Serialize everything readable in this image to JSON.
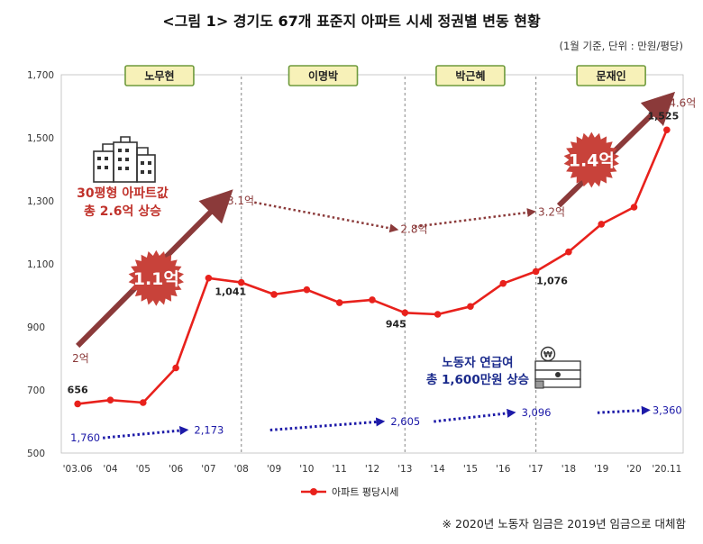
{
  "page": {
    "title": "<그림 1> 경기도 67개 표준지 아파트 시세 정권별 변동 현황",
    "unit_note": "(1월 기준, 단위 : 만원/평당)",
    "footnote": "※ 2020년 노동자 임금은 2019년 임금으로 대체함"
  },
  "colors": {
    "price_line": "#e8211c",
    "wage_line": "#1d1aa8",
    "arrow": "#8b3a3a",
    "badge": "#c8423a",
    "admin_box_fill": "#f7f1b8",
    "admin_box_border": "#6e9a3c",
    "callout_red": "#c0322b",
    "callout_blue": "#1a2a8c",
    "axis_text": "#333333",
    "divider": "#999999"
  },
  "chart_data": {
    "type": "line",
    "title": "<그림 1> 경기도 67개 표준지 아파트 시세 정권별 변동 현황",
    "ylim": [
      500,
      1700
    ],
    "yticks": [
      500,
      700,
      900,
      1100,
      1300,
      1500,
      1700
    ],
    "ytick_labels": [
      "500",
      "700",
      "900",
      "1,100",
      "1,300",
      "1,500",
      "1,700"
    ],
    "categories": [
      "'03.06",
      "'04",
      "'05",
      "'06",
      "'07",
      "'08",
      "'09",
      "'10",
      "'11",
      "'12",
      "'13",
      "'14",
      "'15",
      "'16",
      "'17",
      "'18",
      "'19",
      "'20",
      "'20.11"
    ],
    "series": [
      {
        "name": "아파트 평당시세",
        "values": [
          656,
          668,
          660,
          770,
          1055,
          1041,
          1003,
          1018,
          977,
          986,
          945,
          940,
          965,
          1038,
          1076,
          1138,
          1226,
          1280,
          1525
        ],
        "labels": [
          {
            "index": 0,
            "text": "656"
          },
          {
            "index": 5,
            "text": "1,041"
          },
          {
            "index": 10,
            "text": "945"
          },
          {
            "index": 14,
            "text": "1,076"
          },
          {
            "index": 18,
            "text": "1,525"
          }
        ]
      }
    ],
    "wage_series": {
      "name": "노동자 연급여",
      "segments": [
        {
          "from_index": 0,
          "from_label": "1,760",
          "to_index": 4,
          "to_label": "2,173"
        },
        {
          "from_index": 5,
          "from_label": "2,173",
          "to_index": 10,
          "to_label": "2,605"
        },
        {
          "from_index": 10,
          "from_label": "2,605",
          "to_index": 14,
          "to_label": "3,096"
        },
        {
          "from_index": 15,
          "from_label": "3,096",
          "to_index": 18,
          "to_label": "3,360"
        }
      ],
      "levels": [
        548,
        573,
        600,
        628,
        636
      ]
    },
    "administrations": [
      {
        "name": "노무현",
        "start": 0,
        "end": 5
      },
      {
        "name": "이명박",
        "start": 5,
        "end": 10
      },
      {
        "name": "박근혜",
        "start": 10,
        "end": 14
      },
      {
        "name": "문재인",
        "start": 14,
        "end": 18.6
      }
    ],
    "dividers": [
      5,
      10,
      14
    ],
    "trend_arrows": [
      {
        "from": [
          0,
          840
        ],
        "to": [
          4.4,
          1300
        ],
        "style": "solid",
        "start_label": "2억",
        "end_label": "3.1억"
      },
      {
        "from": [
          5.4,
          1295
        ],
        "to": [
          9.7,
          1210
        ],
        "style": "dotted",
        "end_label": "2.8억"
      },
      {
        "from": [
          10.3,
          1218
        ],
        "to": [
          13.9,
          1265
        ],
        "style": "dotted",
        "end_label": "3.2억"
      },
      {
        "from": [
          14.7,
          1285
        ],
        "to": [
          17.9,
          1610
        ],
        "style": "solid",
        "end_label": "4.6억"
      }
    ],
    "badges": [
      {
        "text": "1.1억",
        "at": [
          2.4,
          1055
        ]
      },
      {
        "text": "1.4억",
        "at": [
          15.7,
          1430
        ]
      }
    ],
    "callouts": {
      "apartment": [
        "30평형 아파트값",
        "총 2.6억 상승"
      ],
      "wage": [
        "노동자 연급여",
        "총 1,600만원 상승"
      ]
    },
    "legend": {
      "label": "아파트 평당시세",
      "position": "bottom-center"
    }
  }
}
